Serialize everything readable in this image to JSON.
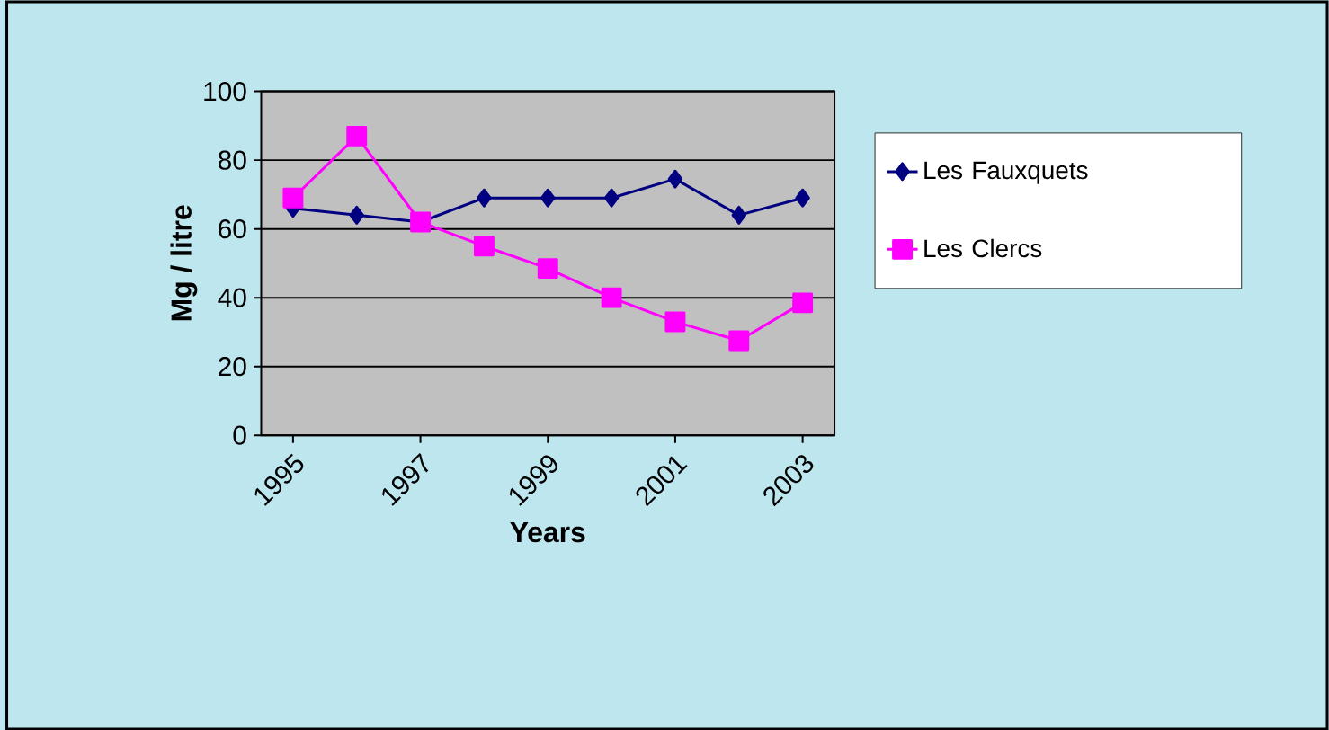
{
  "chart_data": {
    "type": "line",
    "xlabel": "Years",
    "ylabel": "Mg / litre",
    "categories": [
      "1995",
      null,
      "1997",
      null,
      "1999",
      null,
      "2001",
      null,
      "2003"
    ],
    "series": [
      {
        "name": "Les Fauxquets",
        "color": "#000080",
        "marker": "diamond",
        "values": [
          66,
          64,
          62,
          69,
          69,
          69,
          74.5,
          64,
          69
        ]
      },
      {
        "name": "Les Clercs",
        "color": "#ff00ff",
        "marker": "square",
        "values": [
          69,
          87,
          62,
          55,
          48.5,
          40,
          33,
          27.5,
          38.5
        ]
      }
    ],
    "ylim": [
      0,
      100
    ],
    "yticks": [
      0,
      20,
      40,
      60,
      80,
      100
    ],
    "grid": "y",
    "legend": "right",
    "line_style": "solid"
  }
}
